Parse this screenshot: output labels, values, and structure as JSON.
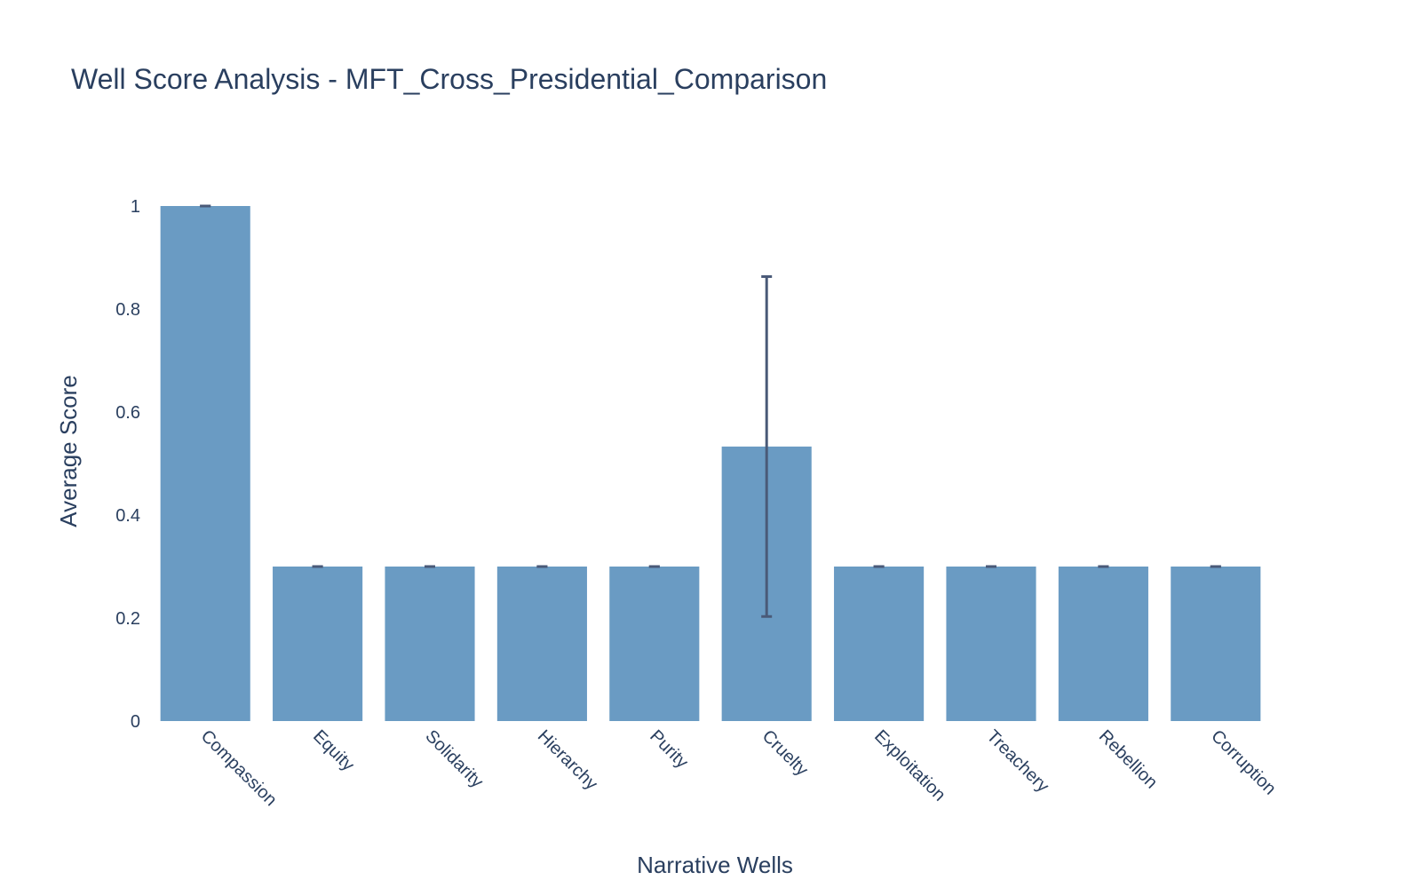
{
  "chart_data": {
    "type": "bar",
    "title": "Well Score Analysis - MFT_Cross_Presidential_Comparison",
    "xlabel": "Narrative Wells",
    "ylabel": "Average Score",
    "categories": [
      "Compassion",
      "Equity",
      "Solidarity",
      "Hierarchy",
      "Purity",
      "Cruelty",
      "Exploitation",
      "Treachery",
      "Rebellion",
      "Corruption"
    ],
    "values": [
      1.0,
      0.3,
      0.3,
      0.3,
      0.3,
      0.533,
      0.3,
      0.3,
      0.3,
      0.3
    ],
    "error_y": [
      0.0,
      0.0,
      0.0,
      0.0,
      0.0,
      0.33,
      0.0,
      0.0,
      0.0,
      0.0
    ],
    "ylim": [
      0,
      1.05
    ],
    "yticks": [
      0,
      0.2,
      0.4,
      0.6,
      0.8,
      1
    ],
    "ytick_labels": [
      "0",
      "0.2",
      "0.4",
      "0.6",
      "0.8",
      "1"
    ],
    "grid": false,
    "legend": "none",
    "bar_color": "#6a9bc3",
    "error_bar_color": "#4a5a78",
    "text_color": "#2a3f5f"
  }
}
